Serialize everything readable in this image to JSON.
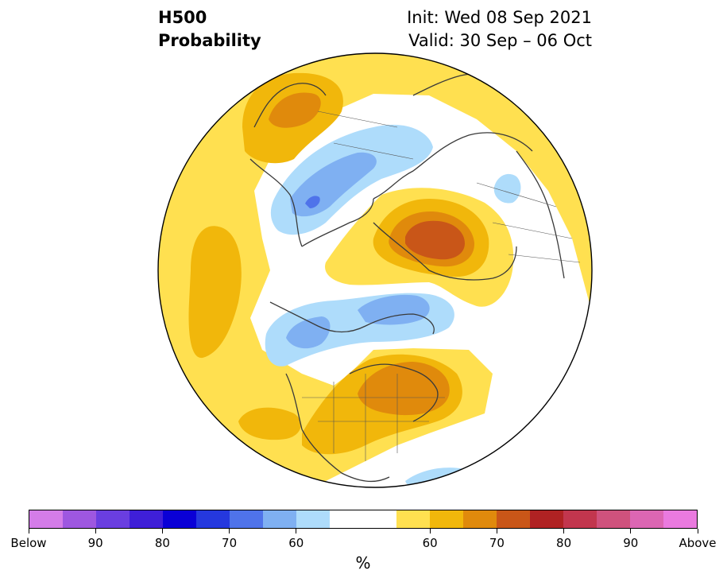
{
  "title": {
    "left_line1": "H500",
    "left_line2": "Probability",
    "right_line1": "Init: Wed 08 Sep 2021",
    "right_line2": "Valid: 30 Sep – 06 Oct"
  },
  "map": {
    "projection": "north polar stereographic",
    "anomaly_regions": [
      {
        "category": "above",
        "level": "60-70",
        "location": "Gulf of Alaska / northeast Pacific"
      },
      {
        "category": "above",
        "level": "70-80",
        "location": "western Russia / northern Europe"
      },
      {
        "category": "above",
        "level": "60-70",
        "location": "eastern Siberia"
      },
      {
        "category": "above",
        "level": "60-70",
        "location": "northeastern United States / eastern Canada"
      },
      {
        "category": "below",
        "level": "60-70",
        "location": "western Canada / Alaska"
      },
      {
        "category": "below",
        "level": "60-70",
        "location": "Arctic Ocean / northern Siberia"
      },
      {
        "category": "below",
        "level": "60-70",
        "location": "Canadian Arctic / Greenland"
      }
    ]
  },
  "colorbar": {
    "colors": [
      "#d47ce8",
      "#9e57e0",
      "#6a3ee0",
      "#3f1fd8",
      "#0a00d6",
      "#2538de",
      "#4f73ea",
      "#7fb0f2",
      "#aedcfb",
      "#ffffff",
      "#ffe050",
      "#f1b70b",
      "#e08a0c",
      "#c95618",
      "#b02223",
      "#c2364e",
      "#cf527d",
      "#dc66b3",
      "#ea7adf"
    ],
    "tick_labels": [
      "Below",
      "90",
      "80",
      "70",
      "60",
      "60",
      "70",
      "80",
      "90",
      "Above"
    ],
    "unit": "%"
  }
}
